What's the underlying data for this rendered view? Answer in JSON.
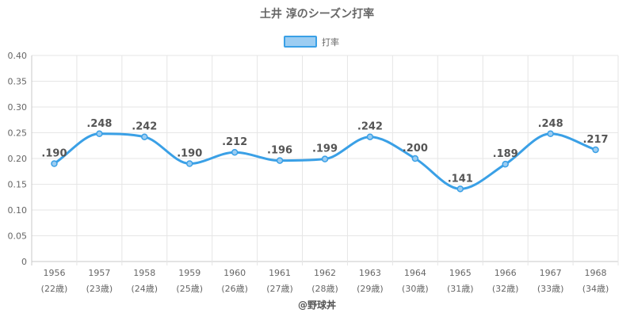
{
  "chart_data": {
    "type": "line",
    "title": "土井 淳のシーズン打率",
    "legend": {
      "position": "top",
      "label": "打率"
    },
    "categories": [
      "1956",
      "1957",
      "1958",
      "1959",
      "1960",
      "1961",
      "1962",
      "1963",
      "1964",
      "1965",
      "1966",
      "1967",
      "1968"
    ],
    "sub_labels": [
      "(22歳)",
      "(23歳)",
      "(24歳)",
      "(25歳)",
      "(26歳)",
      "(27歳)",
      "(28歳)",
      "(29歳)",
      "(30歳)",
      "(31歳)",
      "(32歳)",
      "(33歳)",
      "(34歳)"
    ],
    "series": [
      {
        "name": "打率",
        "values": [
          0.19,
          0.248,
          0.242,
          0.19,
          0.212,
          0.196,
          0.199,
          0.242,
          0.2,
          0.141,
          0.189,
          0.248,
          0.217
        ],
        "labels": [
          ".190",
          ".248",
          ".242",
          ".190",
          ".212",
          ".196",
          ".199",
          ".242",
          ".200",
          ".141",
          ".189",
          ".248",
          ".217"
        ]
      }
    ],
    "ylim": [
      0,
      0.4
    ],
    "yticks": [
      0,
      0.05,
      0.1,
      0.15,
      0.2,
      0.25,
      0.3,
      0.35,
      0.4
    ],
    "ytick_labels": [
      "0",
      "0.05",
      "0.10",
      "0.15",
      "0.20",
      "0.25",
      "0.30",
      "0.35",
      "0.40"
    ],
    "grid": true,
    "colors": {
      "line": "#3aa0e6",
      "fill": "#9ccdf2",
      "grid": "#e6e6e6",
      "axis": "#c8c8c8"
    }
  },
  "credit": "@野球丼"
}
